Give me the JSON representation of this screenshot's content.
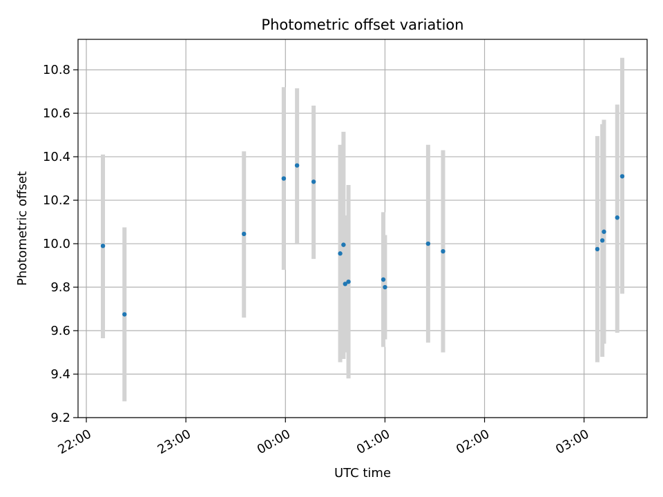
{
  "chart_data": {
    "type": "scatter",
    "title": "Photometric offset variation",
    "xlabel": "UTC time",
    "ylabel": "Photometric offset",
    "x_start": "21:55",
    "x_end": "03:38",
    "xticks": [
      "22:00",
      "23:00",
      "00:00",
      "01:00",
      "02:00",
      "03:00"
    ],
    "ylim": [
      9.2,
      10.94
    ],
    "yticks": [
      "9.2",
      "9.4",
      "9.6",
      "9.8",
      "10.0",
      "10.2",
      "10.4",
      "10.6",
      "10.8"
    ],
    "grid": true,
    "marker_color": "#1f77b4",
    "errorbar_color": "#d3d3d3",
    "points": [
      {
        "x": "22:10",
        "y": 9.99,
        "err_low": 9.565,
        "err_high": 10.41
      },
      {
        "x": "22:23",
        "y": 9.675,
        "err_low": 9.275,
        "err_high": 10.075
      },
      {
        "x": "23:35",
        "y": 10.045,
        "err_low": 9.66,
        "err_high": 10.425
      },
      {
        "x": "23:59",
        "y": 10.3,
        "err_low": 9.88,
        "err_high": 10.72
      },
      {
        "x": "00:07",
        "y": 10.36,
        "err_low": 10.0,
        "err_high": 10.715
      },
      {
        "x": "00:17",
        "y": 10.285,
        "err_low": 9.93,
        "err_high": 10.635
      },
      {
        "x": "00:33",
        "y": 9.955,
        "err_low": 9.455,
        "err_high": 10.455
      },
      {
        "x": "00:35",
        "y": 9.995,
        "err_low": 9.47,
        "err_high": 10.515
      },
      {
        "x": "00:36",
        "y": 9.815,
        "err_low": 9.5,
        "err_high": 10.13
      },
      {
        "x": "00:38",
        "y": 9.825,
        "err_low": 9.38,
        "err_high": 10.27
      },
      {
        "x": "00:59",
        "y": 9.835,
        "err_low": 9.525,
        "err_high": 10.145
      },
      {
        "x": "01:00",
        "y": 9.8,
        "err_low": 9.56,
        "err_high": 10.04
      },
      {
        "x": "01:26",
        "y": 10.0,
        "err_low": 9.545,
        "err_high": 10.455
      },
      {
        "x": "01:35",
        "y": 9.965,
        "err_low": 9.5,
        "err_high": 10.43
      },
      {
        "x": "03:08",
        "y": 9.975,
        "err_low": 9.455,
        "err_high": 10.495
      },
      {
        "x": "03:11",
        "y": 10.015,
        "err_low": 9.48,
        "err_high": 10.55
      },
      {
        "x": "03:12",
        "y": 10.055,
        "err_low": 9.54,
        "err_high": 10.57
      },
      {
        "x": "03:20",
        "y": 10.12,
        "err_low": 9.59,
        "err_high": 10.64
      },
      {
        "x": "03:23",
        "y": 10.31,
        "err_low": 9.77,
        "err_high": 10.855
      }
    ]
  }
}
